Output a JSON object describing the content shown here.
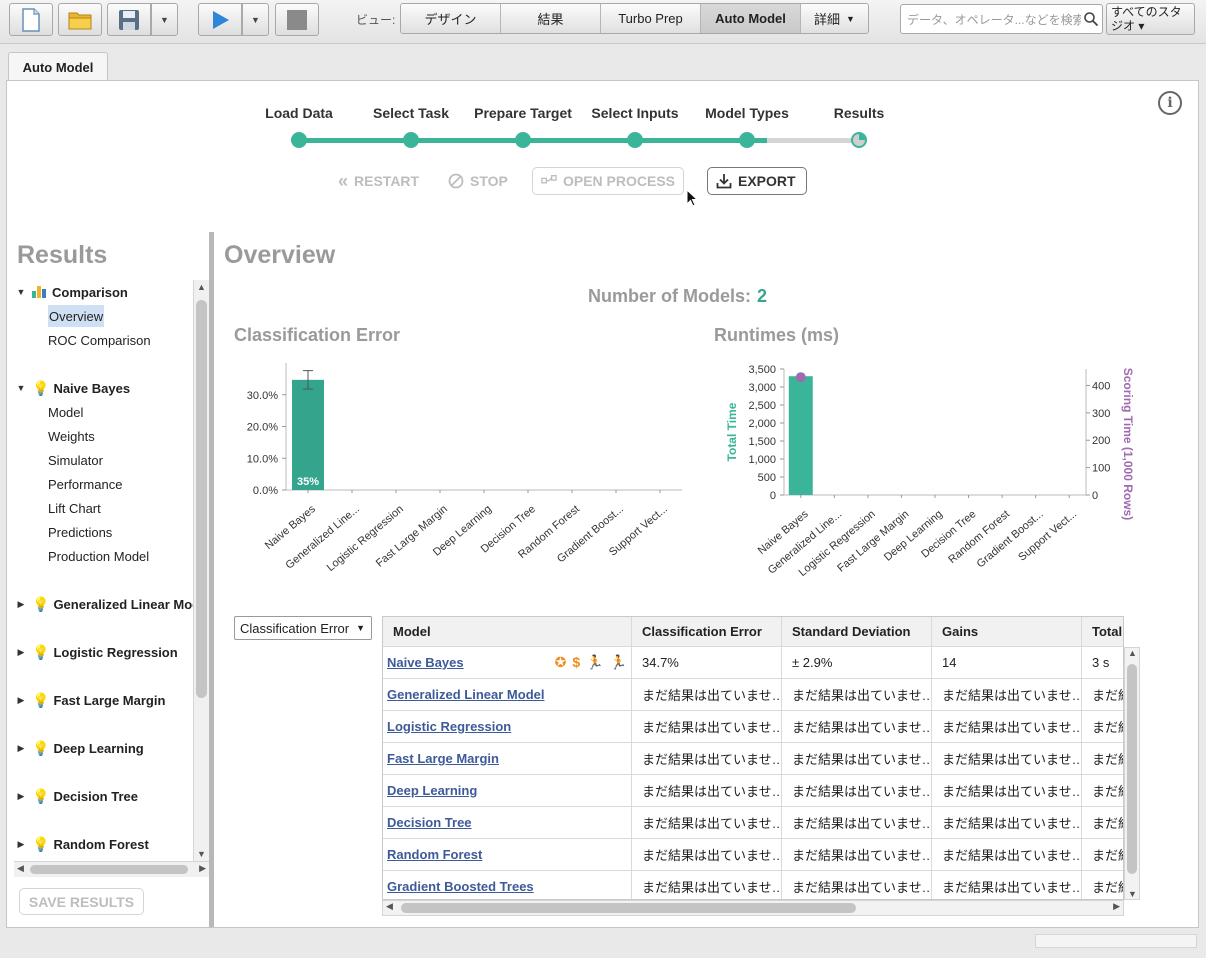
{
  "toolbar": {
    "view_label": "ビュー:",
    "views": [
      "デザイン",
      "結果",
      "Turbo Prep",
      "Auto Model",
      "詳細"
    ],
    "active_view": "Auto Model",
    "search_placeholder": "データ、オペレータ...などを検索",
    "studio_label_1": "すべてのスタ",
    "studio_label_2": "ジオ ▾"
  },
  "panel_tab": "Auto Model",
  "wizard": {
    "steps": [
      "Load Data",
      "Select Task",
      "Prepare Target",
      "Select Inputs",
      "Model Types",
      "Results"
    ],
    "buttons": {
      "restart": "RESTART",
      "stop": "STOP",
      "open_process": "OPEN PROCESS",
      "export": "EXPORT"
    }
  },
  "results": {
    "title": "Results",
    "comparison": {
      "label": "Comparison",
      "children": [
        "Overview",
        "ROC Comparison"
      ]
    },
    "naive_bayes": {
      "label": "Naive Bayes",
      "children": [
        "Model",
        "Weights",
        "Simulator",
        "Performance",
        "Lift Chart",
        "Predictions",
        "Production Model"
      ]
    },
    "groups": [
      "Generalized Linear Mod",
      "Logistic Regression",
      "Fast Large Margin",
      "Deep Learning",
      "Decision Tree",
      "Random Forest"
    ],
    "save_button": "SAVE RESULTS"
  },
  "overview": {
    "title": "Overview",
    "num_models_label": "Number of Models:",
    "num_models_value": "2"
  },
  "colors": {
    "accent": "#3bb59a",
    "bar": "#34a58c",
    "scoring": "#a06ab0"
  },
  "chart_data": [
    {
      "type": "bar",
      "title": "Classification Error",
      "categories": [
        "Naive Bayes",
        "Generalized Line...",
        "Logistic Regression",
        "Fast Large Margin",
        "Deep Learning",
        "Decision Tree",
        "Random Forest",
        "Gradient Boost...",
        "Support Vect..."
      ],
      "values": [
        34.7,
        null,
        null,
        null,
        null,
        null,
        null,
        null,
        null
      ],
      "error": [
        2.9
      ],
      "data_label": "35%",
      "yticks": [
        "0.0%",
        "10.0%",
        "20.0%",
        "30.0%"
      ],
      "ylim": [
        0,
        40
      ]
    },
    {
      "type": "bar",
      "title": "Runtimes (ms)",
      "categories": [
        "Naive Bayes",
        "Generalized Line...",
        "Logistic Regression",
        "Fast Large Margin",
        "Deep Learning",
        "Decision Tree",
        "Random Forest",
        "Gradient Boost...",
        "Support Vect..."
      ],
      "values": [
        3300,
        null,
        null,
        null,
        null,
        null,
        null,
        null,
        null
      ],
      "scoring_values": [
        430
      ],
      "ylabel": "Total Time",
      "y2label": "Scoring Time (1,000 Rows)",
      "yticks": [
        "0",
        "500",
        "1,000",
        "1,500",
        "2,000",
        "2,500",
        "3,000",
        "3,500"
      ],
      "y2ticks": [
        "0",
        "100",
        "200",
        "300",
        "400"
      ],
      "ylim": [
        0,
        3500
      ],
      "y2lim": [
        0,
        460
      ]
    }
  ],
  "metric_select": "Classification Error",
  "table": {
    "headers": [
      "Model",
      "Classification Error",
      "Standard Deviation",
      "Gains",
      "Total"
    ],
    "rows": [
      [
        "Naive Bayes",
        "34.7%",
        "± 2.9%",
        "14",
        "3 s"
      ],
      [
        "Generalized Linear Model",
        "まだ結果は出ていませ…",
        "まだ結果は出ていませ…",
        "まだ結果は出ていませ…",
        "まだ結"
      ],
      [
        "Logistic Regression",
        "まだ結果は出ていませ…",
        "まだ結果は出ていませ…",
        "まだ結果は出ていませ…",
        "まだ結"
      ],
      [
        "Fast Large Margin",
        "まだ結果は出ていませ…",
        "まだ結果は出ていませ…",
        "まだ結果は出ていませ…",
        "まだ結"
      ],
      [
        "Deep Learning",
        "まだ結果は出ていませ…",
        "まだ結果は出ていませ…",
        "まだ結果は出ていませ…",
        "まだ結"
      ],
      [
        "Decision Tree",
        "まだ結果は出ていませ…",
        "まだ結果は出ていませ…",
        "まだ結果は出ていませ…",
        "まだ結"
      ],
      [
        "Random Forest",
        "まだ結果は出ていませ…",
        "まだ結果は出ていませ…",
        "まだ結果は出ていませ…",
        "まだ結"
      ],
      [
        "Gradient Boosted Trees",
        "まだ結果は出ていませ…",
        "まだ結果は出ていませ…",
        "まだ結果は出ていませ…",
        "まだ結"
      ]
    ]
  }
}
